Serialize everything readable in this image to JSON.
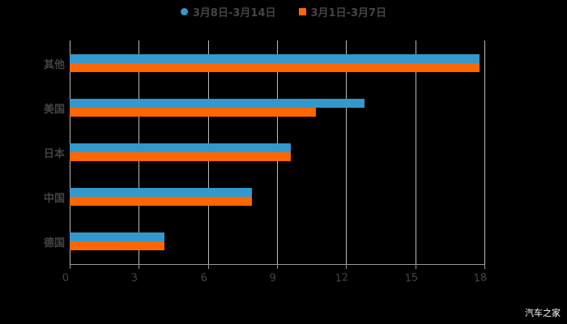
{
  "chart_data": {
    "type": "bar",
    "orientation": "horizontal",
    "title": "",
    "categories": [
      "其他",
      "美国",
      "日本",
      "中国",
      "德国"
    ],
    "series": [
      {
        "name": "3月8日-3月14日",
        "color": "#3399cc",
        "values": [
          17.8,
          12.8,
          9.6,
          7.9,
          4.1
        ]
      },
      {
        "name": "3月1日-3月7日",
        "color": "#ff6600",
        "values": [
          17.8,
          10.7,
          9.6,
          7.9,
          4.1
        ]
      }
    ],
    "xlabel": "",
    "ylabel": "",
    "xlim": [
      0,
      18
    ],
    "xticks": [
      "0",
      "3",
      "6",
      "9",
      "12",
      "15",
      "18"
    ],
    "grid": true,
    "legend_position": "top"
  },
  "legend": {
    "items": [
      {
        "label": "3月8日-3月14日",
        "color": "#3399cc"
      },
      {
        "label": "3月1日-3月7日",
        "color": "#ff6600"
      }
    ]
  },
  "watermark": "汽车之家"
}
